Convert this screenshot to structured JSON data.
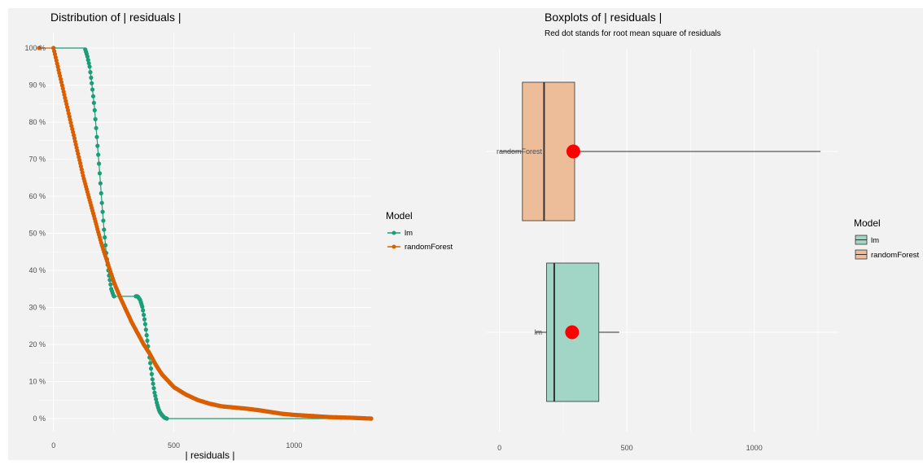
{
  "colors": {
    "panel_bg": "#f2f2f2",
    "grid": "#ffffff",
    "lm": "#1b9e77",
    "randomForest": "#d95f02",
    "lm_box_fill": "#a1d6c6",
    "rf_box_fill": "#ecbd98",
    "rms_dot": "#ff0000"
  },
  "chart_data": [
    {
      "type": "line",
      "title": "Distribution of | residuals |",
      "xlabel": "| residuals |",
      "ylabel": "",
      "xlim": [
        -60,
        1320
      ],
      "ylim": [
        0,
        100
      ],
      "x_ticks": [
        0,
        500,
        1000
      ],
      "x_tick_labels": [
        "0",
        "500",
        "1000"
      ],
      "y_ticks": [
        0,
        10,
        20,
        30,
        40,
        50,
        60,
        70,
        80,
        90,
        100
      ],
      "y_tick_labels": [
        "0 %",
        "10 %",
        "20 %",
        "30 %",
        "40 %",
        "50 %",
        "60 %",
        "70 %",
        "80 %",
        "90 %",
        "100 %"
      ],
      "grid": true,
      "legend": {
        "title": "Model",
        "position": "right",
        "entries": [
          "lm",
          "randomForest"
        ]
      },
      "series": [
        {
          "name": "lm",
          "x": [
            0,
            130,
            140,
            150,
            160,
            170,
            180,
            190,
            200,
            210,
            220,
            230,
            240,
            250,
            340,
            350,
            360,
            370,
            380,
            390,
            400,
            410,
            420,
            430,
            440,
            450,
            460,
            470,
            1320
          ],
          "y": [
            100,
            100,
            98,
            95,
            90,
            84,
            76,
            68,
            59,
            51,
            44,
            39,
            35,
            33,
            33,
            33,
            32,
            30,
            26,
            21,
            16,
            11,
            7,
            4,
            2,
            1,
            0.3,
            0,
            0
          ]
        },
        {
          "name": "randomForest",
          "x": [
            -60,
            0,
            25,
            50,
            75,
            100,
            125,
            150,
            175,
            200,
            225,
            250,
            275,
            300,
            325,
            350,
            375,
            400,
            425,
            450,
            500,
            550,
            600,
            650,
            700,
            750,
            800,
            850,
            900,
            950,
            1000,
            1050,
            1100,
            1150,
            1200,
            1250,
            1320
          ],
          "y": [
            100,
            100,
            93,
            86,
            79,
            72,
            65,
            59,
            53,
            47,
            42,
            37,
            33,
            29.5,
            26,
            23,
            20,
            17.5,
            14.5,
            12,
            8.5,
            6.5,
            5,
            4,
            3.3,
            3,
            2.7,
            2.3,
            1.8,
            1.3,
            1,
            0.8,
            0.6,
            0.4,
            0.3,
            0.2,
            0
          ]
        }
      ]
    },
    {
      "type": "boxplot",
      "title": "Boxplots of | residuals |",
      "subtitle": "Red dot stands for root mean square of residuals",
      "xlabel": "",
      "ylabel": "",
      "xlim": [
        -50,
        1330
      ],
      "x_ticks": [
        0,
        500,
        1000
      ],
      "x_tick_labels": [
        "0",
        "500",
        "1000"
      ],
      "categories": [
        "randomForest",
        "lm"
      ],
      "grid": true,
      "legend": {
        "title": "Model",
        "position": "right",
        "entries": [
          "lm",
          "randomForest"
        ]
      },
      "boxes": [
        {
          "name": "randomForest",
          "whisker_low": 0,
          "q1": 90,
          "median": 175,
          "q3": 295,
          "whisker_high": 1260,
          "rms": 290
        },
        {
          "name": "lm",
          "whisker_low": 140,
          "q1": 185,
          "median": 215,
          "q3": 390,
          "whisker_high": 470,
          "rms": 285
        }
      ]
    }
  ]
}
